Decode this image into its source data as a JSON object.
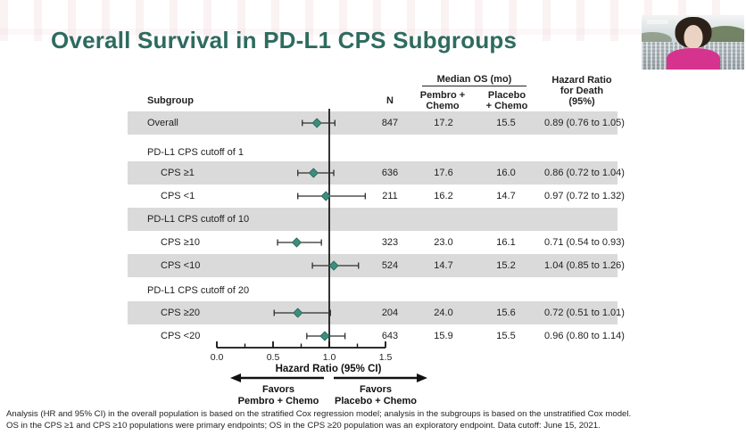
{
  "slide": {
    "title": "Overall Survival in PD-L1 CPS Subgroups",
    "accent_color": "#2E6B5F"
  },
  "table": {
    "headers": {
      "subgroup": "Subgroup",
      "n": "N",
      "median_os": "Median OS (mo)",
      "pembro": {
        "l1": "Pembro +",
        "l2": "Chemo"
      },
      "placebo": {
        "l1": "Placebo",
        "l2": "+ Chemo"
      },
      "hazard_ratio": {
        "l1": "Hazard Ratio",
        "l2": "for Death",
        "l3": "(95%)"
      }
    }
  },
  "chart_data": {
    "type": "forest",
    "title": "Overall Survival in PD-L1 CPS Subgroups",
    "xlabel": "Hazard Ratio (95% CI)",
    "xlim": [
      0.0,
      1.5
    ],
    "xticks": [
      0.0,
      0.5,
      1.0,
      1.5
    ],
    "xtick_labels": [
      "0.0",
      "0.5",
      "1.0",
      "1.5"
    ],
    "minor_tick_step": 0.25,
    "reference_line": 1.0,
    "band_color": "#DADADA",
    "marker_color": "#3F8D7E",
    "favors": {
      "left": {
        "l1": "Favors",
        "l2": "Pembro + Chemo"
      },
      "right": {
        "l1": "Favors",
        "l2": "Placebo + Chemo"
      }
    },
    "rows": [
      {
        "kind": "data",
        "level": 0,
        "label": "Overall",
        "n": "847",
        "pembro": "17.2",
        "placebo": "15.5",
        "hr_text": "0.89 (0.76 to 1.05)",
        "hr": 0.89,
        "ci_low": 0.76,
        "ci_high": 1.05
      },
      {
        "kind": "section",
        "level": 0,
        "label": "PD-L1 CPS cutoff of 1"
      },
      {
        "kind": "data",
        "level": 1,
        "label": "CPS ≥1",
        "n": "636",
        "pembro": "17.6",
        "placebo": "16.0",
        "hr_text": "0.86 (0.72 to 1.04)",
        "hr": 0.86,
        "ci_low": 0.72,
        "ci_high": 1.04
      },
      {
        "kind": "data",
        "level": 1,
        "label": "CPS <1",
        "n": "211",
        "pembro": "16.2",
        "placebo": "14.7",
        "hr_text": "0.97 (0.72 to 1.32)",
        "hr": 0.97,
        "ci_low": 0.72,
        "ci_high": 1.32
      },
      {
        "kind": "section",
        "level": 0,
        "label": "PD-L1 CPS cutoff of 10"
      },
      {
        "kind": "data",
        "level": 1,
        "label": "CPS ≥10",
        "n": "323",
        "pembro": "23.0",
        "placebo": "16.1",
        "hr_text": "0.71 (0.54 to 0.93)",
        "hr": 0.71,
        "ci_low": 0.54,
        "ci_high": 0.93
      },
      {
        "kind": "data",
        "level": 1,
        "label": "CPS <10",
        "n": "524",
        "pembro": "14.7",
        "placebo": "15.2",
        "hr_text": "1.04 (0.85 to 1.26)",
        "hr": 1.04,
        "ci_low": 0.85,
        "ci_high": 1.26
      },
      {
        "kind": "section",
        "level": 0,
        "label": "PD-L1 CPS cutoff of 20"
      },
      {
        "kind": "data",
        "level": 1,
        "label": "CPS ≥20",
        "n": "204",
        "pembro": "24.0",
        "placebo": "15.6",
        "hr_text": "0.72 (0.51 to 1.01)",
        "hr": 0.72,
        "ci_low": 0.51,
        "ci_high": 1.01
      },
      {
        "kind": "data",
        "level": 1,
        "label": "CPS <20",
        "n": "643",
        "pembro": "15.9",
        "placebo": "15.5",
        "hr_text": "0.96 (0.80 to 1.14)",
        "hr": 0.96,
        "ci_low": 0.8,
        "ci_high": 1.14
      }
    ]
  },
  "footnotes": [
    "Analysis (HR and 95% CI) in the overall population is based on the stratified Cox regression model; analysis in the subgroups is based on the unstratified Cox model.",
    "OS in the CPS ≥1 and CPS ≥10 populations were primary endpoints; OS in the CPS ≥20 population was an exploratory endpoint. Data cutoff: June 15, 2021."
  ]
}
